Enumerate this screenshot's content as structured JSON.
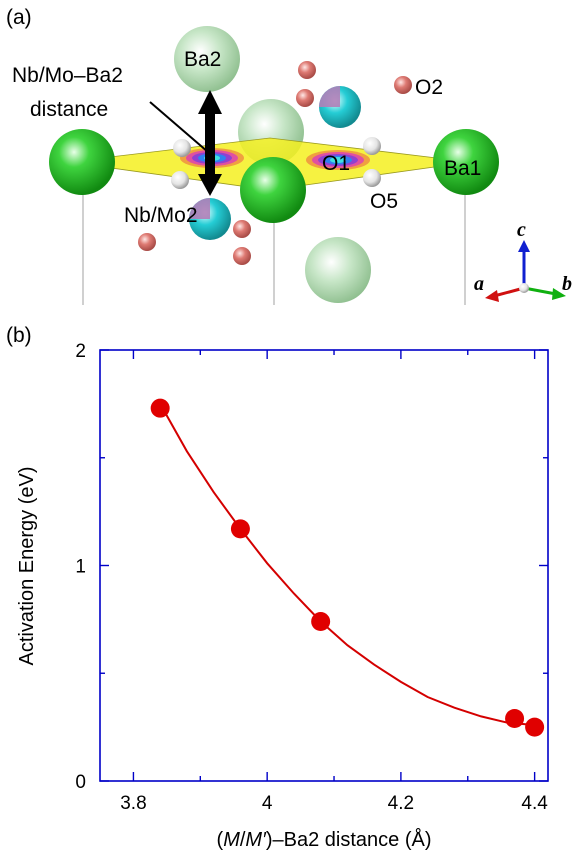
{
  "panel_a": {
    "label": "(a)",
    "annotation_line1": "Nb/Mo–Ba2",
    "annotation_line2": "distance",
    "atoms": {
      "ba2": "Ba2",
      "ba1": "Ba1",
      "o1": "O1",
      "o2": "O2",
      "o5": "O5",
      "nbmo2": "Nb/Mo2"
    },
    "axes": {
      "a": "a",
      "b": "b",
      "c": "c"
    },
    "colors": {
      "ba": "#1fb51f",
      "ba_faded": "#b6dcb6",
      "nbmo": "#20c8d0",
      "oxygen": "#d9736d",
      "oxygen_white": "#e8e8e8",
      "plane": "#f4f020",
      "axis_a": "#d01010",
      "axis_b": "#10b010",
      "axis_c": "#1020d0"
    }
  },
  "panel_b": {
    "label": "(b)"
  },
  "chart_data": {
    "type": "scatter",
    "xlabel_prefix": "(",
    "xlabel_m": "M",
    "xlabel_slash": "/",
    "xlabel_mprime": "M′",
    "xlabel_suffix": ")–Ba2 distance (Å)",
    "ylabel": "Activation Energy (eV)",
    "xlim": [
      3.75,
      4.42
    ],
    "ylim": [
      0,
      2
    ],
    "xticks": [
      3.8,
      4.0,
      4.2,
      4.4
    ],
    "xtick_labels": [
      "3.8",
      "4",
      "4.2",
      "4.4"
    ],
    "yticks": [
      0,
      1,
      2
    ],
    "ytick_labels": [
      "0",
      "1",
      "2"
    ],
    "points": [
      {
        "x": 3.84,
        "y": 1.73
      },
      {
        "x": 3.96,
        "y": 1.17
      },
      {
        "x": 4.08,
        "y": 0.74
      },
      {
        "x": 4.37,
        "y": 0.29
      },
      {
        "x": 4.4,
        "y": 0.25
      }
    ],
    "fit_curve": {
      "x": [
        3.84,
        3.88,
        3.92,
        3.96,
        4.0,
        4.04,
        4.08,
        4.12,
        4.16,
        4.2,
        4.24,
        4.28,
        4.32,
        4.36,
        4.4
      ],
      "y": [
        1.75,
        1.53,
        1.34,
        1.17,
        1.01,
        0.87,
        0.74,
        0.63,
        0.54,
        0.46,
        0.39,
        0.34,
        0.3,
        0.27,
        0.26
      ]
    },
    "colors": {
      "marker": "#e00000",
      "curve": "#d40000",
      "frame": "#0000c8"
    }
  }
}
